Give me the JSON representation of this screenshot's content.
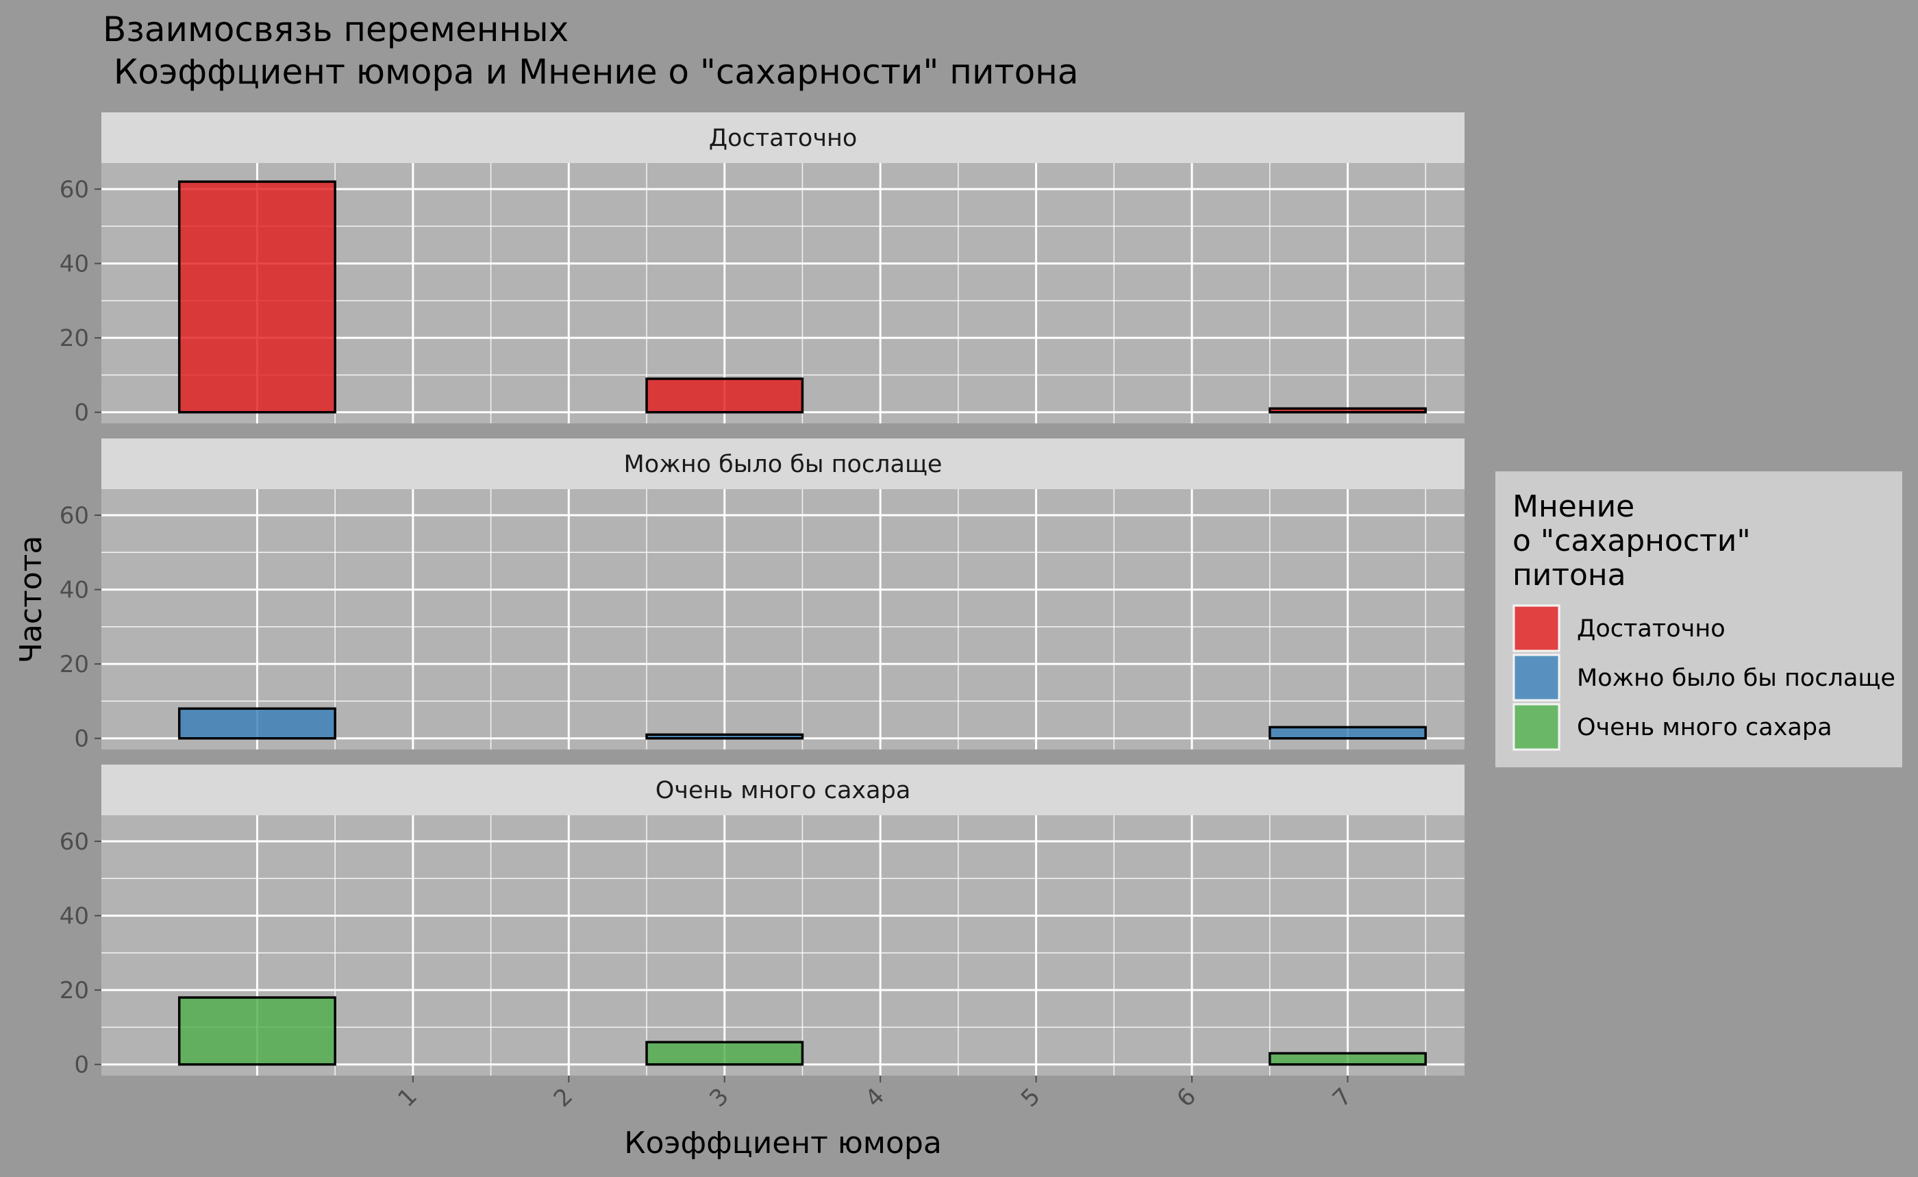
{
  "chart_data": {
    "type": "bar",
    "title_lines": [
      "Взаимосвязь переменных",
      " Коэффциент юмора и Мнение о \"сахарности\" питона"
    ],
    "xlabel": "Коэффциент юмора",
    "ylabel": "Частота",
    "x_ticks": [
      "1",
      "2",
      "3",
      "4",
      "5",
      "6",
      "7"
    ],
    "xlim": [
      -1,
      7.75
    ],
    "ylim": [
      -3,
      67
    ],
    "y_ticks": [
      0,
      20,
      40,
      60
    ],
    "grid": true,
    "legend": {
      "title_lines": [
        "Мнение",
        "о \"сахарности\"",
        "питона"
      ],
      "position": "right"
    },
    "bin_width": 1,
    "bin_centers": [
      0,
      1,
      2,
      3,
      4,
      5,
      6,
      7
    ],
    "facets": [
      {
        "label": "Достаточно",
        "color": "#E41A1C",
        "values": [
          62,
          0,
          0,
          9,
          0,
          0,
          0,
          1
        ]
      },
      {
        "label": "Можно было бы послаще",
        "color": "#377EB8",
        "values": [
          8,
          0,
          0,
          1,
          0,
          0,
          0,
          3
        ]
      },
      {
        "label": "Очень много сахара",
        "color": "#4DAF4A",
        "values": [
          18,
          0,
          0,
          6,
          0,
          0,
          0,
          3
        ]
      }
    ]
  }
}
